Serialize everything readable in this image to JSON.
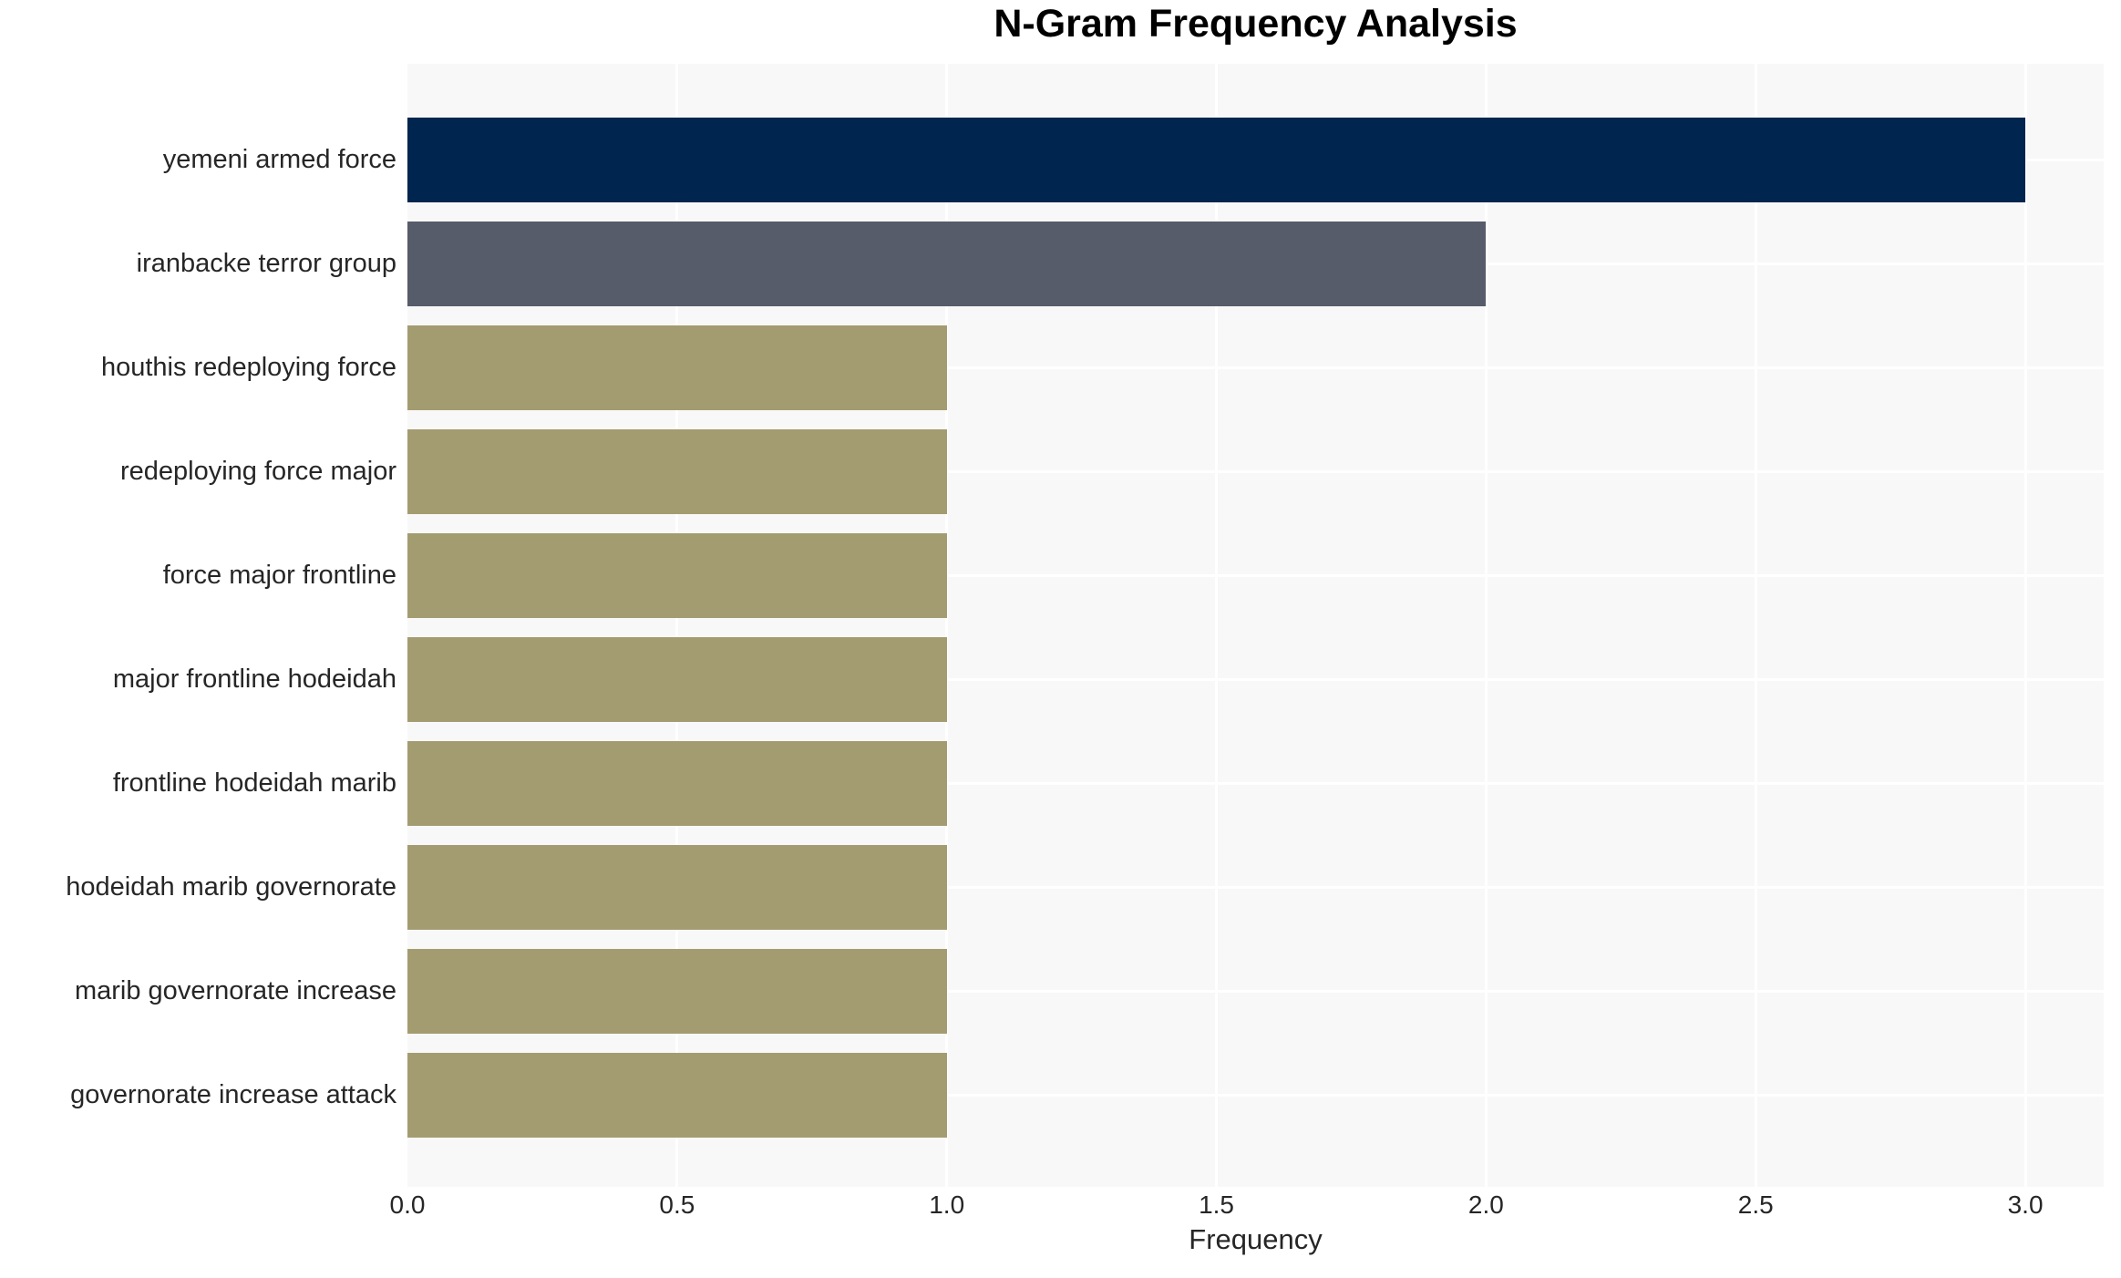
{
  "chart_data": {
    "type": "bar",
    "orientation": "horizontal",
    "title": "N-Gram Frequency Analysis",
    "xlabel": "Frequency",
    "ylabel": "",
    "categories": [
      "yemeni armed force",
      "iranbacke terror group",
      "houthis redeploying force",
      "redeploying force major",
      "force major frontline",
      "major frontline hodeidah",
      "frontline hodeidah marib",
      "hodeidah marib governorate",
      "marib governorate increase",
      "governorate increase attack"
    ],
    "values": [
      3,
      2,
      1,
      1,
      1,
      1,
      1,
      1,
      1,
      1
    ],
    "bar_colors": [
      "#00254e",
      "#565c6a",
      "#a49c71",
      "#a49c71",
      "#a49c71",
      "#a49c71",
      "#a49c71",
      "#a49c71",
      "#a49c71",
      "#a49c71"
    ],
    "xlim": [
      0,
      3.1452
    ],
    "xticks": [
      "0.0",
      "0.5",
      "1.0",
      "1.5",
      "2.0",
      "2.5",
      "3.0"
    ],
    "xtick_values": [
      0,
      0.5,
      1,
      1.5,
      2,
      2.5,
      3
    ],
    "grid": "on",
    "grid_color": "#ffffff",
    "plot_background": "#f8f8f8",
    "page_background": "#ffffff",
    "text_color": "#262626",
    "title_color": "#000000",
    "legend": "none"
  }
}
